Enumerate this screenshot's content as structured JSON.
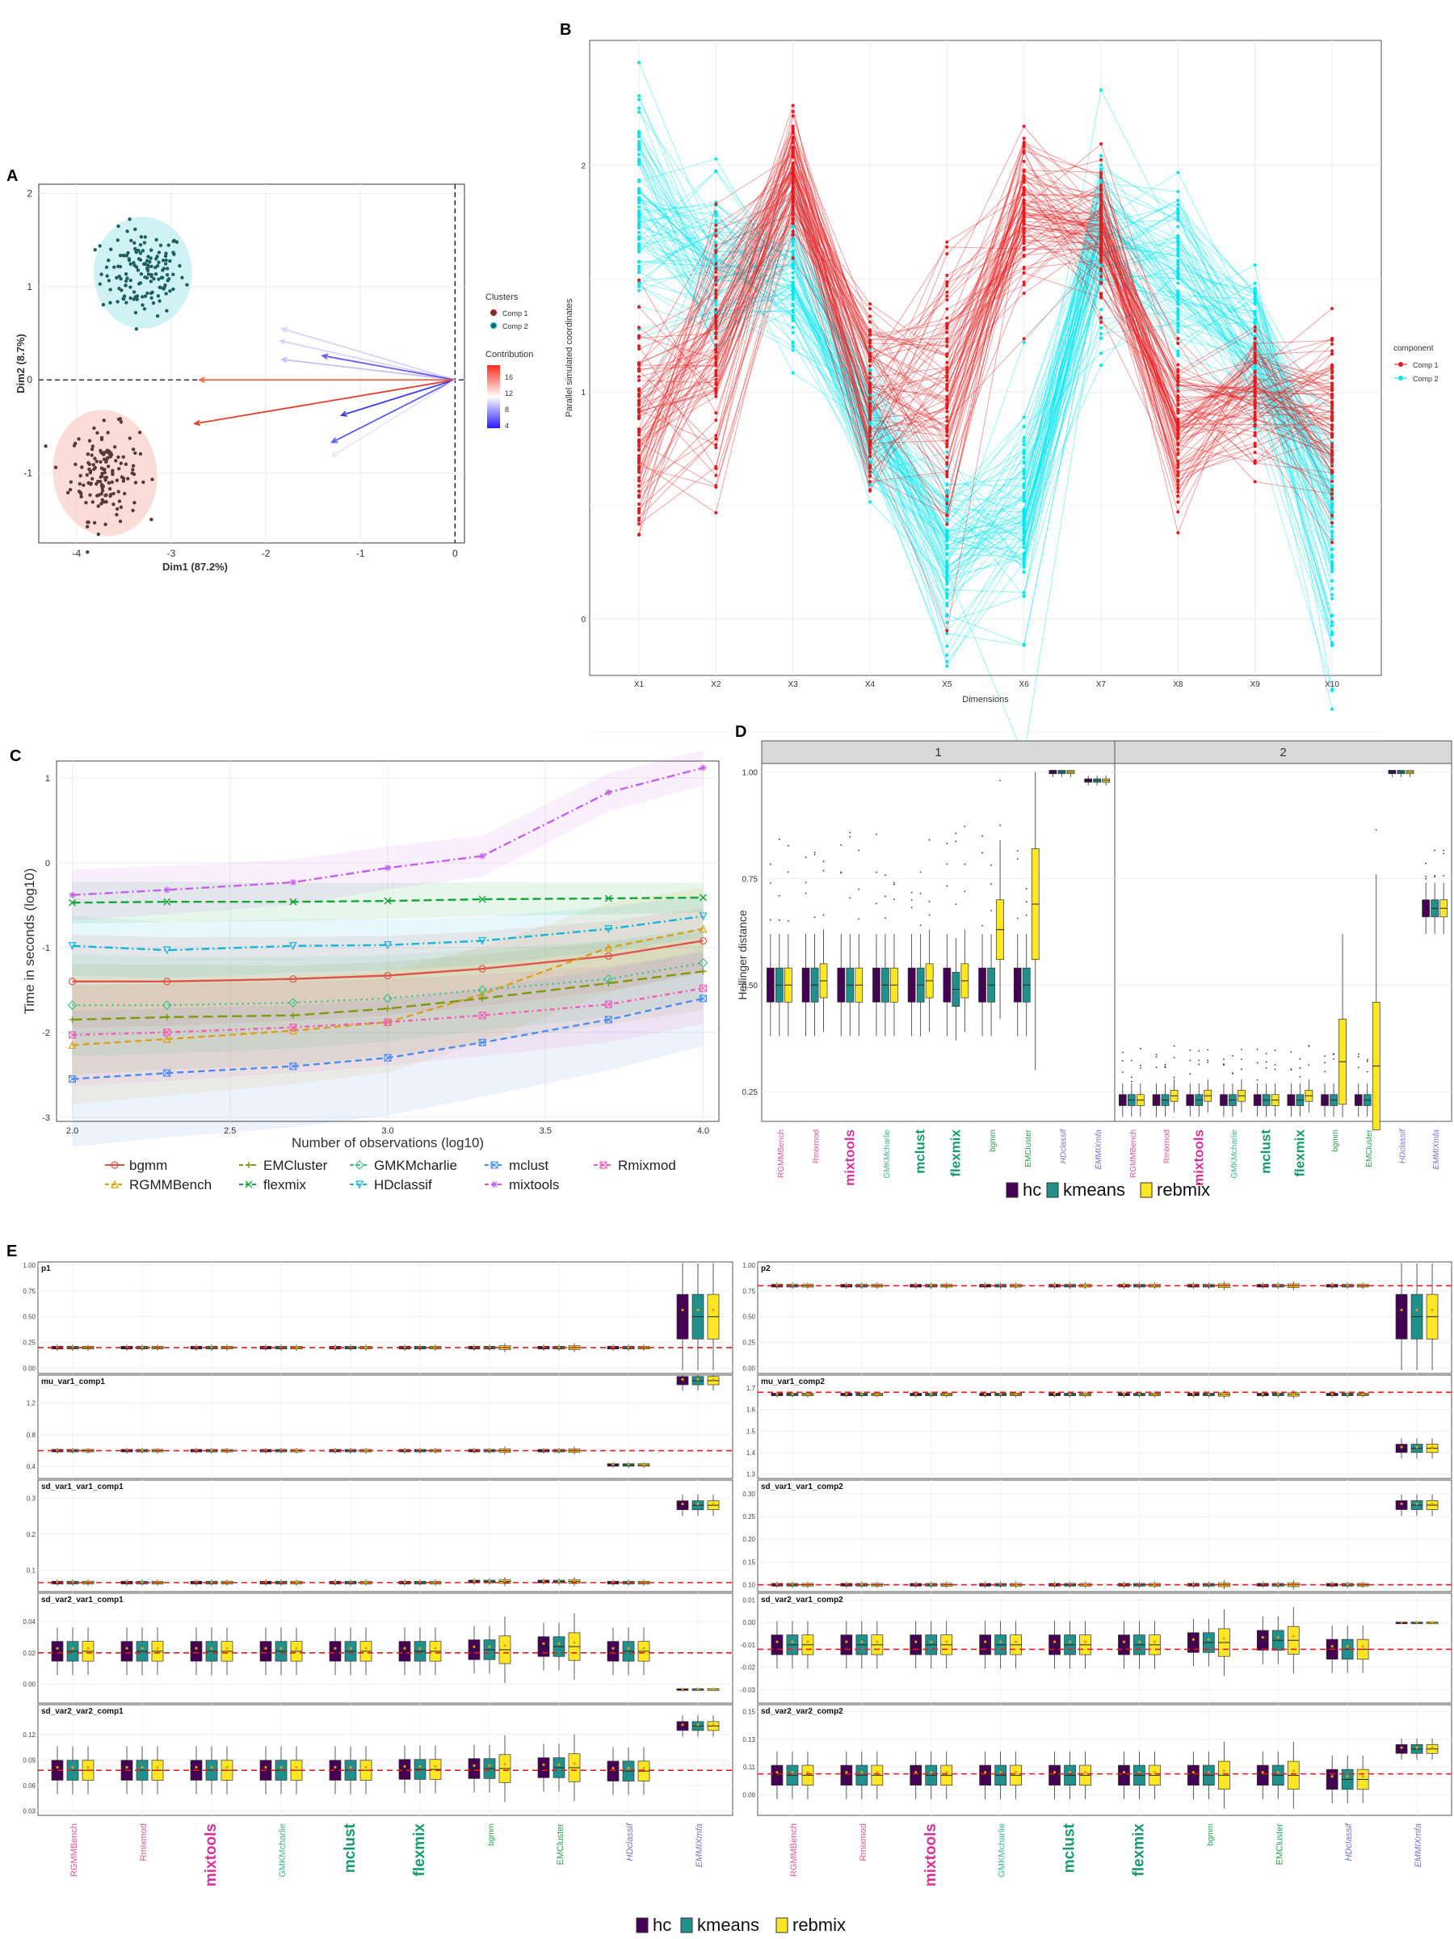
{
  "panels": {
    "A": {
      "letter": "A",
      "title": "",
      "xlabel": "Dim1 (87.2%)",
      "ylabel": "Dim2 (8.7%)",
      "xticks": [
        "-4",
        "-3",
        "-2",
        "-1",
        "0"
      ],
      "yticks": [
        "2",
        "1",
        "0",
        "-1"
      ],
      "legend_clusters_title": "Clusters",
      "legend_clusters": [
        "Comp 1",
        "Comp 2"
      ],
      "legend_contrib_title": "Contribution",
      "legend_contrib_ticks": [
        "16",
        "12",
        "8",
        "4"
      ]
    },
    "B": {
      "letter": "B",
      "xlabel": "Dimensions",
      "ylabel": "Parallel simulated coordinates",
      "xticks": [
        "X1",
        "X2",
        "X3",
        "X4",
        "X5",
        "X6",
        "X7",
        "X8",
        "X9",
        "X10"
      ],
      "yticks": [
        "2",
        "1",
        "0"
      ],
      "legend_title": "component",
      "legend": [
        "Comp 1",
        "Comp 2"
      ]
    },
    "C": {
      "letter": "C",
      "xlabel": "Number of observations (log10)",
      "ylabel": "Time in seconds (log10)",
      "xticks": [
        "2.0",
        "2.5",
        "3.0",
        "3.5",
        "4.0"
      ],
      "yticks": [
        "1",
        "0",
        "-1",
        "-2",
        "-3"
      ],
      "legend": [
        "bgmm",
        "RGMMBench",
        "EMCluster",
        "flexmix",
        "GMKMcharlie",
        "HDclassif",
        "mclust",
        "mixtools",
        "Rmixmod"
      ]
    },
    "D": {
      "letter": "D",
      "ylabel": "Hellinger distance",
      "facets": [
        "1",
        "2"
      ],
      "yticks": [
        "1.00",
        "0.75",
        "0.50",
        "0.25"
      ],
      "packages": [
        "RGMMBench",
        "Rmixmod",
        "mixtools",
        "GMKMcharlie",
        "mclust",
        "flexmix",
        "bgmm",
        "EMCluster",
        "HDclassif",
        "EMMIXmfa"
      ],
      "legend": [
        "hc",
        "kmeans",
        "rebmix"
      ]
    },
    "E": {
      "letter": "E",
      "facets_left": [
        "p1",
        "mu_var1_comp1",
        "sd_var1_var1_comp1",
        "sd_var2_var1_comp1",
        "sd_var2_var2_comp1"
      ],
      "facets_right": [
        "p2",
        "mu_var1_comp2",
        "sd_var1_var1_comp2",
        "sd_var2_var1_comp2",
        "sd_var2_var2_comp2"
      ],
      "packages": [
        "RGMMBench",
        "Rmixmod",
        "mixtools",
        "GMKMcharlie",
        "mclust",
        "flexmix",
        "bgmm",
        "EMCluster",
        "HDclassif",
        "EMMIXmfa"
      ],
      "legend": [
        "hc",
        "kmeans",
        "rebmix"
      ],
      "left_yticks": [
        [
          "1.00",
          "0.75",
          "0.50",
          "0.25",
          "0.00"
        ],
        [
          "1.2",
          "0.8",
          "0.4"
        ],
        [
          "0.3",
          "0.2",
          "0.1"
        ],
        [
          "0.04",
          "0.02",
          "0.00"
        ],
        [
          "0.12",
          "0.09",
          "0.06",
          "0.03"
        ]
      ],
      "right_yticks": [
        [
          "1.00",
          "0.75",
          "0.50",
          "0.25",
          "0.00"
        ],
        [
          "1.7",
          "1.6",
          "1.5",
          "1.4",
          "1.3"
        ],
        [
          "0.30",
          "0.25",
          "0.20",
          "0.15",
          "0.10"
        ],
        [
          "0.01",
          "0.00",
          "-0.01",
          "-0.02",
          "-0.03"
        ],
        [
          "0.15",
          "0.13",
          "0.11",
          "0.09"
        ]
      ]
    }
  },
  "colors": {
    "comp1": "#e41a1c",
    "comp2": "#00e5ee",
    "hc": "#440154",
    "kmeans": "#21908c",
    "rebmix": "#fde725",
    "refline": "#e41a1c",
    "strip": "#d9d9d9"
  },
  "chart_data": [
    {
      "type": "scatter",
      "title": "",
      "xlabel": "Dim1 (87.2%)",
      "ylabel": "Dim2 (8.7%)",
      "xlim": [
        -4.4,
        0.1
      ],
      "ylim": [
        -1.75,
        2.1
      ],
      "series": [
        {
          "name": "Comp 1",
          "center": [
            -3.7,
            -1.0
          ]
        },
        {
          "name": "Comp 2",
          "center": [
            -3.3,
            1.15
          ]
        }
      ]
    },
    {
      "type": "line",
      "title": "",
      "xlabel": "Dimensions",
      "ylabel": "Parallel simulated coordinates",
      "categories": [
        "X1",
        "X2",
        "X3",
        "X4",
        "X5",
        "X6",
        "X7",
        "X8",
        "X9",
        "X10"
      ],
      "series": [
        {
          "name": "Comp 1",
          "means": [
            0.85,
            1.2,
            1.95,
            0.95,
            1.0,
            1.8,
            1.7,
            0.85,
            1.0,
            0.9
          ]
        },
        {
          "name": "Comp 2",
          "means": [
            1.75,
            1.55,
            1.5,
            0.85,
            0.35,
            0.4,
            1.7,
            1.5,
            1.2,
            0.4
          ]
        }
      ]
    },
    {
      "type": "line",
      "xlabel": "Number of observations (log10)",
      "ylabel": "Time in seconds (log10)",
      "xlim": [
        1.95,
        4.05
      ],
      "ylim": [
        -3.05,
        1.2
      ],
      "x": [
        2.0,
        2.3,
        2.7,
        3.0,
        3.3,
        3.7,
        4.0
      ],
      "series": [
        {
          "name": "bgmm",
          "values": [
            -1.4,
            -1.4,
            -1.37,
            -1.33,
            -1.25,
            -1.1,
            -0.92
          ]
        },
        {
          "name": "RGMMBench",
          "values": [
            -2.15,
            -2.08,
            -1.98,
            -1.88,
            -1.55,
            -1.0,
            -0.78
          ]
        },
        {
          "name": "EMCluster",
          "values": [
            -1.85,
            -1.82,
            -1.8,
            -1.72,
            -1.6,
            -1.42,
            -1.28
          ]
        },
        {
          "name": "flexmix",
          "values": [
            -0.47,
            -0.46,
            -0.46,
            -0.45,
            -0.43,
            -0.42,
            -0.41
          ]
        },
        {
          "name": "GMKMcharlie",
          "values": [
            -1.68,
            -1.68,
            -1.65,
            -1.6,
            -1.5,
            -1.37,
            -1.18
          ]
        },
        {
          "name": "HDclassif",
          "values": [
            -0.98,
            -1.03,
            -0.98,
            -0.97,
            -0.92,
            -0.78,
            -0.63
          ]
        },
        {
          "name": "mclust",
          "values": [
            -2.55,
            -2.48,
            -2.4,
            -2.3,
            -2.12,
            -1.85,
            -1.6
          ]
        },
        {
          "name": "mixtools",
          "values": [
            -0.38,
            -0.32,
            -0.23,
            -0.06,
            0.08,
            0.83,
            1.12
          ]
        },
        {
          "name": "Rmixmod",
          "values": [
            -2.03,
            -2.0,
            -1.94,
            -1.88,
            -1.8,
            -1.67,
            -1.48
          ]
        }
      ]
    },
    {
      "type": "box",
      "ylabel": "Hellinger distance",
      "ylim": [
        0.18,
        1.02
      ],
      "categories": [
        "RGMMBench",
        "Rmixmod",
        "mixtools",
        "GMKMcharlie",
        "mclust",
        "flexmix",
        "bgmm",
        "EMCluster",
        "HDclassif",
        "EMMIXmfa"
      ],
      "facets": [
        {
          "name": "1",
          "medians": {
            "hc": [
              0.5,
              0.5,
              0.5,
              0.5,
              0.5,
              0.5,
              0.5,
              0.5,
              1.0,
              0.98
            ],
            "kmeans": [
              0.5,
              0.5,
              0.5,
              0.5,
              0.5,
              0.49,
              0.5,
              0.5,
              1.0,
              0.98
            ],
            "rebmix": [
              0.5,
              0.51,
              0.5,
              0.5,
              0.51,
              0.51,
              0.63,
              0.69,
              1.0,
              0.98
            ]
          }
        },
        {
          "name": "2",
          "medians": {
            "hc": [
              0.23,
              0.23,
              0.23,
              0.23,
              0.23,
              0.23,
              0.23,
              0.23,
              1.0,
              0.68
            ],
            "kmeans": [
              0.23,
              0.23,
              0.23,
              0.23,
              0.23,
              0.23,
              0.23,
              0.23,
              1.0,
              0.68
            ],
            "rebmix": [
              0.23,
              0.24,
              0.24,
              0.24,
              0.23,
              0.24,
              0.32,
              0.31,
              1.0,
              0.68
            ]
          }
        }
      ]
    },
    {
      "type": "box",
      "title": "",
      "categories": [
        "RGMMBench",
        "Rmixmod",
        "mixtools",
        "GMKMcharlie",
        "mclust",
        "flexmix",
        "bgmm",
        "EMCluster",
        "HDclassif",
        "EMMIXmfa"
      ],
      "facets": [
        {
          "name": "p1",
          "ylim": [
            -0.05,
            1.03
          ],
          "ref": 0.2,
          "medians": [
            0.2,
            0.2,
            0.2,
            0.2,
            0.2,
            0.2,
            0.2,
            0.2,
            0.2,
            0.5
          ]
        },
        {
          "name": "mu_var1_comp1",
          "ylim": [
            0.25,
            1.55
          ],
          "ref": 0.6,
          "medians": [
            0.6,
            0.6,
            0.6,
            0.6,
            0.6,
            0.6,
            0.6,
            0.6,
            0.42,
            1.48
          ]
        },
        {
          "name": "sd_var1_var1_comp1",
          "ylim": [
            0.04,
            0.35
          ],
          "ref": 0.065,
          "medians": [
            0.065,
            0.065,
            0.065,
            0.065,
            0.065,
            0.065,
            0.068,
            0.068,
            0.065,
            0.28
          ]
        },
        {
          "name": "sd_var2_var1_comp1",
          "ylim": [
            -0.012,
            0.058
          ],
          "ref": 0.02,
          "medians": [
            0.021,
            0.021,
            0.021,
            0.021,
            0.021,
            0.021,
            0.022,
            0.024,
            0.021,
            -0.003
          ]
        },
        {
          "name": "sd_var2_var2_comp1",
          "ylim": [
            0.025,
            0.155
          ],
          "ref": 0.078,
          "medians": [
            0.078,
            0.078,
            0.078,
            0.078,
            0.078,
            0.079,
            0.08,
            0.081,
            0.077,
            0.13
          ]
        },
        {
          "name": "p2",
          "ylim": [
            -0.05,
            1.03
          ],
          "ref": 0.8,
          "medians": [
            0.8,
            0.8,
            0.8,
            0.8,
            0.8,
            0.8,
            0.8,
            0.8,
            0.8,
            0.5
          ]
        },
        {
          "name": "mu_var1_comp2",
          "ylim": [
            1.28,
            1.76
          ],
          "ref": 1.68,
          "medians": [
            1.67,
            1.67,
            1.67,
            1.67,
            1.67,
            1.67,
            1.67,
            1.67,
            1.67,
            1.42
          ]
        },
        {
          "name": "sd_var1_var1_comp2",
          "ylim": [
            0.085,
            0.33
          ],
          "ref": 0.1,
          "medians": [
            0.1,
            0.1,
            0.1,
            0.1,
            0.1,
            0.1,
            0.1,
            0.1,
            0.1,
            0.275
          ]
        },
        {
          "name": "sd_var2_var1_comp2",
          "ylim": [
            -0.036,
            0.013
          ],
          "ref": -0.012,
          "medians": [
            -0.01,
            -0.01,
            -0.01,
            -0.01,
            -0.01,
            -0.01,
            -0.009,
            -0.008,
            -0.012,
            0.0
          ]
        },
        {
          "name": "sd_var2_var2_comp2",
          "ylim": [
            0.075,
            0.155
          ],
          "ref": 0.105,
          "medians": [
            0.104,
            0.104,
            0.104,
            0.104,
            0.104,
            0.104,
            0.104,
            0.104,
            0.101,
            0.123
          ]
        }
      ]
    }
  ]
}
